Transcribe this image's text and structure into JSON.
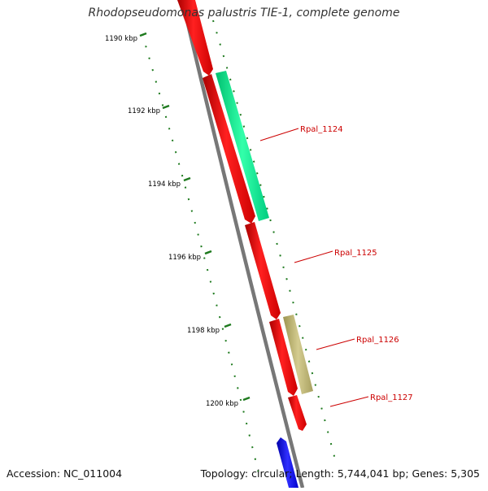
{
  "title": "Rhodopseudomonas palustris TIE-1, complete genome",
  "footer": {
    "accession": "Accession: NC_011004",
    "summary": "Topology: circular; Length: 5,744,041 bp; Genes: 5,305"
  },
  "ruler": {
    "labels": [
      "1190 kbp",
      "1192 kbp",
      "1194 kbp",
      "1196 kbp",
      "1198 kbp",
      "1200 kbp"
    ],
    "color": "#1e7a1e"
  },
  "backbone_color": "#888888",
  "features": [
    {
      "type": "forward-cds",
      "color": "#ff0000",
      "label": ""
    },
    {
      "type": "forward-cds",
      "color": "#ff0000",
      "label": "Rpal_1124"
    },
    {
      "type": "forward-cds",
      "color": "#ff0000",
      "label": "Rpal_1125"
    },
    {
      "type": "forward-cds",
      "color": "#ff0000",
      "label": "Rpal_1126"
    },
    {
      "type": "forward-cds",
      "color": "#ff0000",
      "label": "Rpal_1127"
    },
    {
      "type": "reverse-cds",
      "color": "#0000ff",
      "label": ""
    }
  ],
  "annotations": [
    {
      "color": "#00ee88",
      "label": ""
    },
    {
      "color": "#b8b070",
      "label": ""
    }
  ],
  "label_color": "#cc0000"
}
